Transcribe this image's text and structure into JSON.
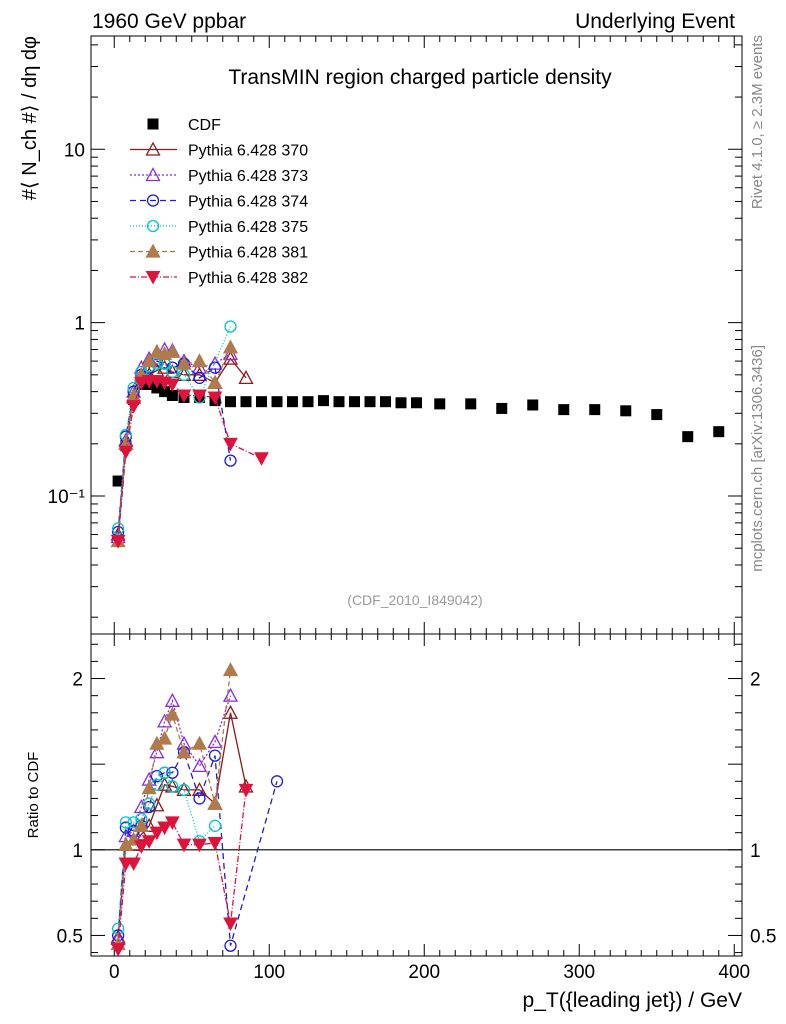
{
  "header": {
    "left": "1960 GeV ppbar",
    "right": "Underlying Event",
    "title": "TransMIN region charged particle density",
    "analysis_id": "(CDF_2010_I849042)",
    "side_rivet": "Rivet 4.1.0, ≥ 2.3M events",
    "side_mcplots": "mcplots.cern.ch [arXiv:1306.3436]"
  },
  "chart_data": [
    {
      "panel": "main",
      "type": "scatter",
      "ylabel": "#⟨ N_ch #⟩ / dη dφ",
      "yscale": "log",
      "ylim": [
        0.016,
        45
      ],
      "xlim": [
        -15,
        405
      ],
      "ytick_labels": [
        {
          "value": 10,
          "label": "10"
        },
        {
          "value": 1,
          "label": "1"
        },
        {
          "value": 0.1,
          "label": "10⁻¹"
        }
      ],
      "series": [
        {
          "name": "CDF",
          "color": "#000000",
          "marker": "square",
          "dash": "none",
          "x": [
            2.5,
            7.5,
            12.5,
            17.5,
            22.5,
            27.5,
            32.5,
            37.5,
            45,
            55,
            65,
            75,
            85,
            95,
            105,
            115,
            125,
            135,
            145,
            155,
            165,
            175,
            185,
            195,
            210,
            230,
            250,
            270,
            290,
            310,
            330,
            350,
            370,
            390
          ],
          "y": [
            0.122,
            0.195,
            0.36,
            0.44,
            0.44,
            0.42,
            0.4,
            0.38,
            0.37,
            0.37,
            0.355,
            0.35,
            0.35,
            0.35,
            0.35,
            0.35,
            0.35,
            0.355,
            0.35,
            0.35,
            0.35,
            0.35,
            0.345,
            0.345,
            0.34,
            0.34,
            0.32,
            0.335,
            0.315,
            0.315,
            0.31,
            0.295,
            0.22,
            0.235
          ]
        },
        {
          "name": "Pythia 6.428 370",
          "color": "#8b1a1a",
          "marker": "triangle-up-open",
          "dash": "none",
          "x": [
            2.5,
            7.5,
            12.5,
            17.5,
            22.5,
            27.5,
            32.5,
            37.5,
            45,
            55,
            65,
            75,
            85
          ],
          "y": [
            0.06,
            0.2,
            0.37,
            0.48,
            0.5,
            0.53,
            0.55,
            0.52,
            0.5,
            0.5,
            0.45,
            0.62,
            0.48
          ]
        },
        {
          "name": "Pythia 6.428 373",
          "color": "#8a2be2",
          "marker": "triangle-up-open",
          "dash": "2,2",
          "x": [
            2.5,
            7.5,
            12.5,
            17.5,
            22.5,
            27.5,
            32.5,
            37.5,
            45,
            55,
            65,
            75
          ],
          "y": [
            0.058,
            0.21,
            0.4,
            0.55,
            0.62,
            0.66,
            0.7,
            0.69,
            0.6,
            0.55,
            0.58,
            0.66
          ]
        },
        {
          "name": "Pythia 6.428 374",
          "color": "#1c1cd6",
          "marker": "circle-open",
          "dash": "6,4",
          "x": [
            2.5,
            7.5,
            12.5,
            17.5,
            22.5,
            27.5,
            32.5,
            37.5,
            45,
            55,
            65,
            75
          ],
          "y": [
            0.062,
            0.22,
            0.4,
            0.5,
            0.55,
            0.6,
            0.58,
            0.55,
            0.58,
            0.48,
            0.55,
            0.16
          ]
        },
        {
          "name": "Pythia 6.428 375",
          "color": "#00c8c8",
          "marker": "circle-open",
          "dash": "1,2",
          "x": [
            2.5,
            7.5,
            12.5,
            17.5,
            22.5,
            27.5,
            32.5,
            37.5,
            45,
            55,
            75
          ],
          "y": [
            0.065,
            0.225,
            0.42,
            0.52,
            0.56,
            0.58,
            0.58,
            0.52,
            0.5,
            0.37,
            0.95
          ]
        },
        {
          "name": "Pythia 6.428 381",
          "color": "#b07a4a",
          "marker": "triangle-up",
          "dash": "5,3",
          "x": [
            2.5,
            7.5,
            12.5,
            17.5,
            22.5,
            27.5,
            32.5,
            37.5,
            45,
            55,
            65,
            75
          ],
          "y": [
            0.055,
            0.2,
            0.38,
            0.5,
            0.6,
            0.68,
            0.66,
            0.68,
            0.58,
            0.6,
            0.45,
            0.72
          ]
        },
        {
          "name": "Pythia 6.428 382",
          "color": "#dc143c",
          "marker": "triangle-down",
          "dash": "6,2,1,2",
          "x": [
            2.5,
            7.5,
            12.5,
            17.5,
            22.5,
            27.5,
            32.5,
            37.5,
            45,
            55,
            65,
            75,
            95
          ],
          "y": [
            0.055,
            0.18,
            0.33,
            0.45,
            0.46,
            0.46,
            0.45,
            0.44,
            0.38,
            0.38,
            0.37,
            0.2,
            0.165
          ]
        }
      ]
    },
    {
      "panel": "ratio",
      "type": "line",
      "ylabel": "Ratio to CDF",
      "ylim": [
        0.38,
        2.26
      ],
      "xlim": [
        -15,
        405
      ],
      "yticks": [
        0.5,
        1,
        2
      ],
      "ytick_labels": [
        "0.5",
        "1",
        "2"
      ],
      "xticks": [
        0,
        100,
        200,
        300,
        400
      ],
      "xtick_labels": [
        "0",
        "100",
        "200",
        "300",
        "400"
      ],
      "xlabel": "p_T({leading jet}) / GeV",
      "reference_line": 1,
      "series": [
        {
          "name": "Pythia 6.428 370",
          "color": "#8b1a1a",
          "marker": "triangle-up-open",
          "dash": "none",
          "x": [
            2.5,
            7.5,
            12.5,
            17.5,
            22.5,
            27.5,
            32.5,
            37.5,
            45,
            55,
            65,
            75,
            85
          ],
          "y": [
            0.49,
            1.03,
            1.03,
            1.09,
            1.14,
            1.26,
            1.38,
            1.37,
            1.35,
            1.35,
            1.27,
            1.8,
            1.37
          ]
        },
        {
          "name": "Pythia 6.428 373",
          "color": "#8a2be2",
          "marker": "triangle-up-open",
          "dash": "2,2",
          "x": [
            2.5,
            7.5,
            12.5,
            17.5,
            22.5,
            27.5,
            32.5,
            37.5,
            45,
            55,
            65,
            75
          ],
          "y": [
            0.48,
            1.08,
            1.11,
            1.25,
            1.41,
            1.57,
            1.75,
            1.87,
            1.62,
            1.49,
            1.63,
            1.9
          ]
        },
        {
          "name": "Pythia 6.428 374",
          "color": "#1c1cd6",
          "marker": "circle-open",
          "dash": "6,4",
          "x": [
            2.5,
            7.5,
            12.5,
            17.5,
            22.5,
            27.5,
            32.5,
            37.5,
            45,
            55,
            65,
            75,
            105
          ],
          "y": [
            0.5,
            1.13,
            1.11,
            1.14,
            1.25,
            1.43,
            1.45,
            1.45,
            1.57,
            1.3,
            1.55,
            0.44,
            1.4
          ]
        },
        {
          "name": "Pythia 6.428 375",
          "color": "#00c8c8",
          "marker": "circle-open",
          "dash": "1,2",
          "x": [
            2.5,
            7.5,
            12.5,
            17.5,
            22.5,
            27.5,
            32.5,
            37.5,
            45,
            55,
            65
          ],
          "y": [
            0.54,
            1.16,
            1.16,
            1.18,
            1.27,
            1.38,
            1.45,
            1.37,
            1.35,
            1.05,
            1.14
          ]
        },
        {
          "name": "Pythia 6.428 381",
          "color": "#b07a4a",
          "marker": "triangle-up",
          "dash": "5,3",
          "x": [
            2.5,
            7.5,
            12.5,
            17.5,
            22.5,
            27.5,
            32.5,
            37.5,
            45,
            55,
            65,
            75
          ],
          "y": [
            0.45,
            1.03,
            1.06,
            1.14,
            1.36,
            1.62,
            1.65,
            1.79,
            1.57,
            1.62,
            1.27,
            2.05
          ]
        },
        {
          "name": "Pythia 6.428 382",
          "color": "#dc143c",
          "marker": "triangle-down",
          "dash": "6,2,1,2",
          "x": [
            2.5,
            7.5,
            12.5,
            17.5,
            22.5,
            27.5,
            32.5,
            37.5,
            45,
            55,
            65,
            75,
            85
          ],
          "y": [
            0.42,
            0.92,
            0.92,
            1.02,
            1.05,
            1.1,
            1.13,
            1.16,
            1.03,
            1.03,
            1.04,
            0.57,
            1.35
          ]
        }
      ]
    }
  ]
}
